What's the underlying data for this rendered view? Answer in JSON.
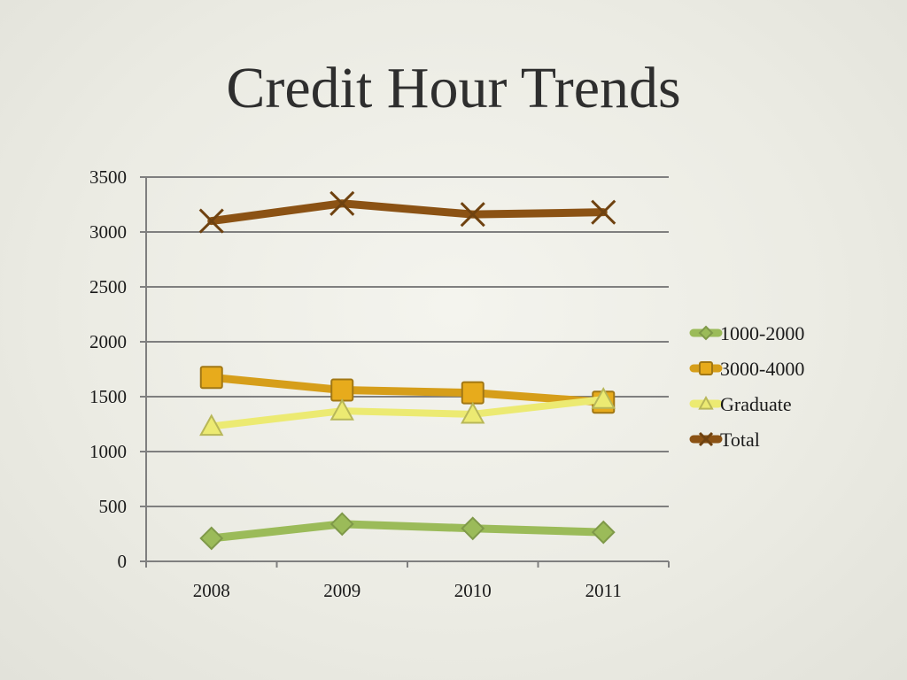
{
  "slide": {
    "title": "Credit Hour Trends"
  },
  "chart_data": {
    "type": "line",
    "title": "",
    "xlabel": "",
    "ylabel": "",
    "categories": [
      "2008",
      "2009",
      "2010",
      "2011"
    ],
    "ylim": [
      0,
      3500
    ],
    "yticks": [
      0,
      500,
      1000,
      1500,
      2000,
      2500,
      3000,
      3500
    ],
    "grid": true,
    "legend": "right",
    "series": [
      {
        "name": "1000-2000",
        "values": [
          210,
          340,
          300,
          265
        ],
        "color": "#9bbb59",
        "marker": "diamond"
      },
      {
        "name": "3000-4000",
        "values": [
          1675,
          1560,
          1535,
          1450
        ],
        "color": "#d69e1a",
        "marker": "square"
      },
      {
        "name": "Graduate",
        "values": [
          1230,
          1370,
          1340,
          1475
        ],
        "color": "#ecea72",
        "marker": "triangle"
      },
      {
        "name": "Total",
        "values": [
          3100,
          3260,
          3160,
          3180
        ],
        "color": "#8b5214",
        "marker": "x"
      }
    ]
  }
}
